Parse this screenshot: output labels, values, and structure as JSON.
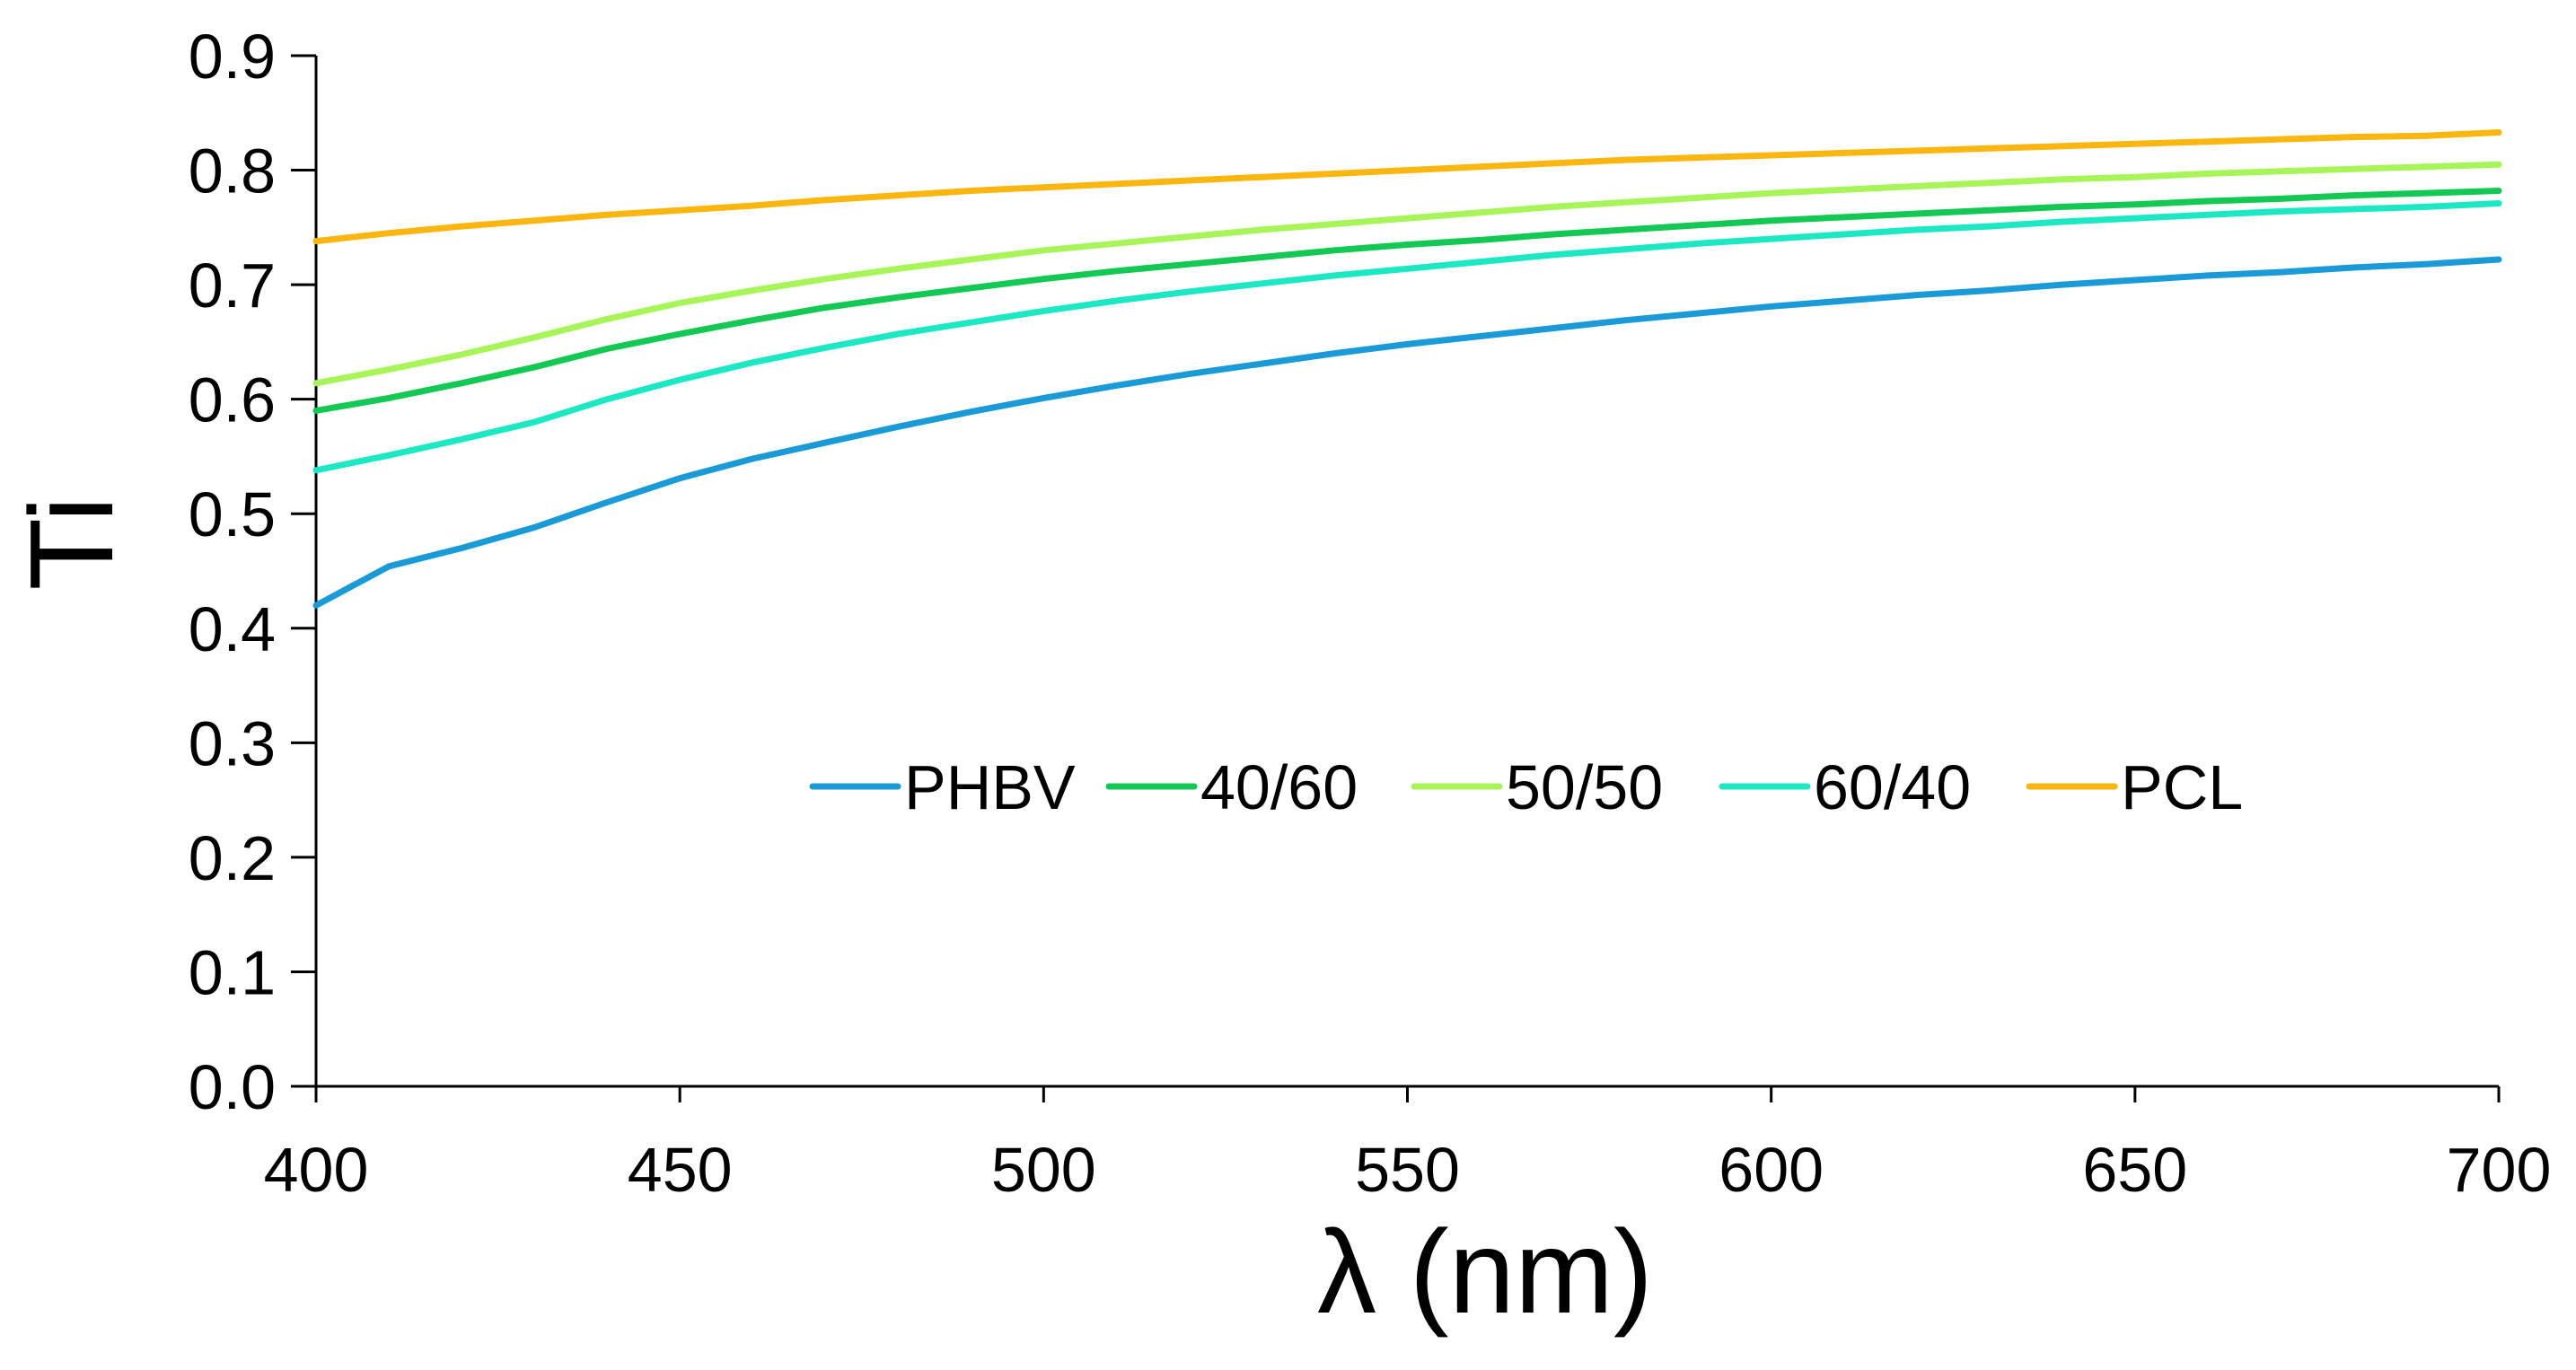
{
  "chart_data": {
    "type": "line",
    "title": "",
    "xlabel": "λ (nm)",
    "ylabel": "Ti",
    "xlim": [
      400,
      700
    ],
    "ylim": [
      0.0,
      0.9
    ],
    "xticks": [
      400,
      450,
      500,
      550,
      600,
      650,
      700
    ],
    "yticks": [
      0.0,
      0.1,
      0.2,
      0.3,
      0.4,
      0.5,
      0.6,
      0.7,
      0.8,
      0.9
    ],
    "xtick_labels": [
      "400",
      "450",
      "500",
      "550",
      "600",
      "650",
      "700"
    ],
    "ytick_labels": [
      "0.0",
      "0.1",
      "0.2",
      "0.3",
      "0.4",
      "0.5",
      "0.6",
      "0.7",
      "0.8",
      "0.9"
    ],
    "grid": false,
    "legend_position": "center",
    "x": [
      400,
      410,
      420,
      430,
      440,
      450,
      460,
      470,
      480,
      490,
      500,
      510,
      520,
      530,
      540,
      550,
      560,
      570,
      580,
      590,
      600,
      610,
      620,
      630,
      640,
      650,
      660,
      670,
      680,
      690,
      700
    ],
    "series": [
      {
        "name": "PHBV",
        "color": "#1a9bd7",
        "values": [
          0.42,
          0.454,
          0.47,
          0.488,
          0.51,
          0.531,
          0.548,
          0.562,
          0.576,
          0.589,
          0.601,
          0.612,
          0.622,
          0.631,
          0.64,
          0.648,
          0.655,
          0.662,
          0.669,
          0.675,
          0.681,
          0.686,
          0.691,
          0.695,
          0.7,
          0.704,
          0.708,
          0.711,
          0.715,
          0.718,
          0.722
        ]
      },
      {
        "name": "40/60",
        "color": "#13c853",
        "values": [
          0.59,
          0.601,
          0.614,
          0.628,
          0.644,
          0.657,
          0.669,
          0.68,
          0.689,
          0.697,
          0.705,
          0.712,
          0.718,
          0.724,
          0.73,
          0.735,
          0.739,
          0.744,
          0.748,
          0.752,
          0.756,
          0.759,
          0.762,
          0.765,
          0.768,
          0.77,
          0.773,
          0.775,
          0.778,
          0.78,
          0.782
        ]
      },
      {
        "name": "50/50",
        "color": "#a8f55a",
        "values": [
          0.614,
          0.626,
          0.639,
          0.654,
          0.67,
          0.684,
          0.695,
          0.705,
          0.714,
          0.722,
          0.73,
          0.736,
          0.742,
          0.748,
          0.753,
          0.758,
          0.763,
          0.768,
          0.772,
          0.776,
          0.78,
          0.783,
          0.786,
          0.789,
          0.792,
          0.794,
          0.797,
          0.799,
          0.801,
          0.803,
          0.805
        ]
      },
      {
        "name": "60/40",
        "color": "#1de8c4",
        "values": [
          0.538,
          0.551,
          0.565,
          0.58,
          0.6,
          0.617,
          0.632,
          0.645,
          0.657,
          0.667,
          0.677,
          0.686,
          0.694,
          0.701,
          0.708,
          0.714,
          0.72,
          0.726,
          0.731,
          0.736,
          0.74,
          0.744,
          0.748,
          0.751,
          0.755,
          0.758,
          0.761,
          0.764,
          0.766,
          0.768,
          0.771
        ]
      },
      {
        "name": "PCL",
        "color": "#fbb710",
        "values": [
          0.738,
          0.745,
          0.751,
          0.756,
          0.761,
          0.765,
          0.769,
          0.774,
          0.778,
          0.782,
          0.785,
          0.788,
          0.791,
          0.794,
          0.797,
          0.8,
          0.803,
          0.806,
          0.809,
          0.811,
          0.813,
          0.815,
          0.817,
          0.819,
          0.821,
          0.823,
          0.825,
          0.827,
          0.829,
          0.83,
          0.833
        ]
      }
    ]
  }
}
